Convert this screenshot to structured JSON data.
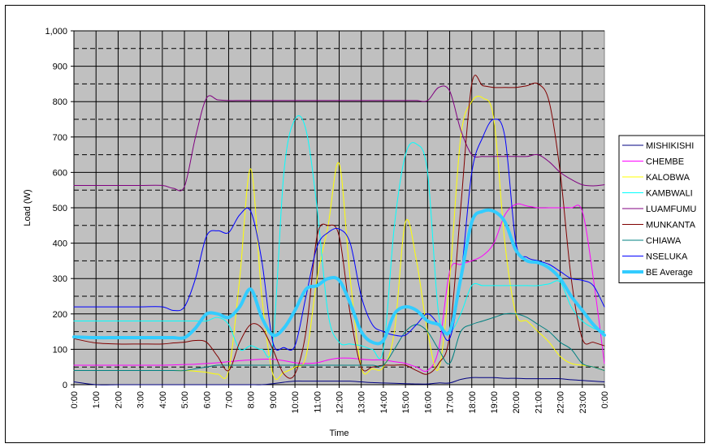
{
  "chart_data": {
    "type": "line",
    "title": "",
    "xlabel": "Time",
    "ylabel": "Load (W)",
    "ylim": [
      0,
      1000
    ],
    "y_ticks": [
      "0",
      "100",
      "200",
      "300",
      "400",
      "500",
      "600",
      "700",
      "800",
      "900",
      "1,000"
    ],
    "x_ticks": [
      "0:00",
      "1:00",
      "2:00",
      "3:00",
      "4:00",
      "5:00",
      "6:00",
      "7:00",
      "8:00",
      "9:00",
      "10:00",
      "11:00",
      "12:00",
      "13:00",
      "14:00",
      "15:00",
      "16:00",
      "17:00",
      "18:00",
      "19:00",
      "20:00",
      "21:00",
      "22:00",
      "23:00",
      "0:00"
    ],
    "grid": "on",
    "plot_background": "#c0c0c0",
    "legend_position": "right",
    "x": [
      0,
      1,
      2,
      3,
      4,
      4.5,
      5,
      5.5,
      6,
      6.5,
      7,
      7.5,
      8,
      8.5,
      9,
      9.5,
      10,
      10.5,
      11,
      11.5,
      12,
      12.5,
      13,
      13.5,
      14,
      14.5,
      15,
      15.5,
      16,
      16.5,
      17,
      17.5,
      18,
      18.5,
      19,
      19.5,
      20,
      20.5,
      21,
      21.5,
      22,
      22.5,
      23,
      23.5,
      24
    ],
    "series": [
      {
        "name": "MISHIKISHI",
        "color": "#000080",
        "width": 1,
        "values": [
          8,
          0,
          0,
          0,
          0,
          0,
          0,
          0,
          0,
          0,
          0,
          0,
          0,
          0,
          3,
          7,
          10,
          10,
          10,
          10,
          10,
          10,
          8,
          6,
          5,
          4,
          3,
          2,
          2,
          5,
          5,
          15,
          20,
          20,
          20,
          18,
          18,
          17,
          17,
          17,
          17,
          14,
          12,
          10,
          8
        ]
      },
      {
        "name": "CHEMBE",
        "color": "#ff00ff",
        "width": 1,
        "values": [
          55,
          55,
          55,
          55,
          55,
          56,
          57,
          58,
          60,
          62,
          65,
          68,
          70,
          72,
          72,
          68,
          62,
          60,
          62,
          70,
          75,
          75,
          72,
          70,
          70,
          65,
          60,
          50,
          40,
          100,
          320,
          340,
          350,
          365,
          400,
          480,
          510,
          505,
          500,
          500,
          500,
          500,
          490,
          300,
          60
        ]
      },
      {
        "name": "KALOBWA",
        "color": "#ffff00",
        "width": 1,
        "values": [
          40,
          40,
          40,
          40,
          40,
          40,
          40,
          38,
          35,
          30,
          40,
          300,
          610,
          250,
          30,
          35,
          50,
          80,
          300,
          450,
          625,
          300,
          50,
          45,
          50,
          150,
          460,
          350,
          150,
          45,
          300,
          700,
          800,
          810,
          750,
          400,
          200,
          180,
          150,
          120,
          80,
          60,
          55,
          50,
          40
        ]
      },
      {
        "name": "KAMBWALI",
        "color": "#00ffff",
        "width": 1,
        "values": [
          180,
          180,
          180,
          180,
          180,
          180,
          180,
          180,
          180,
          190,
          170,
          100,
          110,
          100,
          120,
          600,
          750,
          720,
          500,
          200,
          120,
          115,
          110,
          100,
          100,
          450,
          650,
          680,
          600,
          200,
          150,
          200,
          280,
          280,
          280,
          280,
          280,
          280,
          280,
          285,
          290,
          220,
          180,
          160,
          150
        ]
      },
      {
        "name": "LUAMFUMU",
        "color": "#800080",
        "width": 1,
        "values": [
          563,
          563,
          563,
          563,
          563,
          555,
          560,
          700,
          810,
          805,
          803,
          803,
          803,
          803,
          803,
          803,
          803,
          803,
          803,
          803,
          803,
          803,
          803,
          803,
          803,
          803,
          803,
          803,
          803,
          840,
          830,
          720,
          650,
          645,
          645,
          645,
          645,
          645,
          650,
          630,
          600,
          580,
          565,
          562,
          565
        ]
      },
      {
        "name": "MUNKANTA",
        "color": "#800000",
        "width": 1,
        "values": [
          130,
          118,
          115,
          115,
          115,
          118,
          120,
          125,
          120,
          80,
          40,
          120,
          170,
          160,
          100,
          30,
          30,
          150,
          420,
          450,
          420,
          200,
          50,
          50,
          55,
          55,
          55,
          40,
          30,
          60,
          140,
          500,
          850,
          845,
          840,
          840,
          840,
          845,
          850,
          800,
          600,
          300,
          130,
          120,
          110
        ]
      },
      {
        "name": "CHIAWA",
        "color": "#008080",
        "width": 1,
        "values": [
          40,
          40,
          40,
          40,
          40,
          40,
          40,
          45,
          50,
          55,
          55,
          55,
          55,
          55,
          55,
          55,
          55,
          55,
          55,
          55,
          55,
          55,
          55,
          55,
          55,
          100,
          150,
          170,
          150,
          100,
          60,
          150,
          170,
          180,
          190,
          200,
          200,
          190,
          170,
          150,
          120,
          100,
          60,
          50,
          40
        ]
      },
      {
        "name": "NSELUKA",
        "color": "#0000ff",
        "width": 1,
        "values": [
          220,
          220,
          220,
          220,
          220,
          210,
          220,
          300,
          420,
          435,
          430,
          480,
          490,
          350,
          120,
          105,
          110,
          250,
          390,
          430,
          440,
          400,
          250,
          170,
          150,
          140,
          140,
          170,
          200,
          170,
          130,
          300,
          600,
          700,
          750,
          700,
          400,
          360,
          350,
          340,
          320,
          300,
          295,
          280,
          220
        ]
      },
      {
        "name": "BE Average",
        "color": "#33ccff",
        "width": 4,
        "values": [
          135,
          133,
          133,
          133,
          133,
          133,
          133,
          160,
          200,
          200,
          190,
          220,
          270,
          190,
          140,
          160,
          210,
          270,
          280,
          300,
          295,
          230,
          150,
          120,
          125,
          200,
          220,
          210,
          180,
          170,
          150,
          300,
          460,
          490,
          490,
          460,
          380,
          350,
          345,
          330,
          300,
          250,
          210,
          170,
          140
        ]
      }
    ]
  }
}
